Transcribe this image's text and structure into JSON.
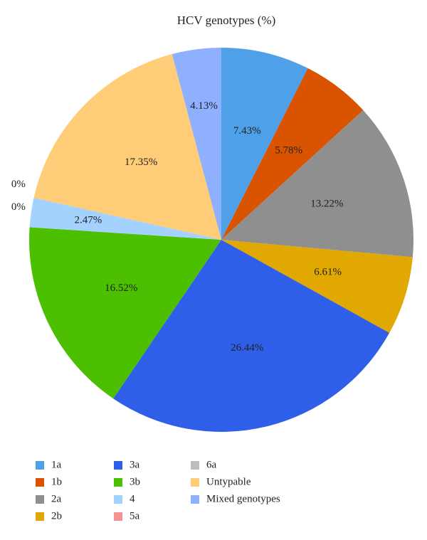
{
  "chart_data": {
    "type": "pie",
    "title": "HCV genotypes (%)",
    "categories": [
      "1a",
      "1b",
      "2a",
      "2b",
      "3a",
      "3b",
      "4",
      "5a",
      "6a",
      "Untypable",
      "Mixed genotypes"
    ],
    "values": [
      7.43,
      5.78,
      13.22,
      6.61,
      26.44,
      16.52,
      2.47,
      0,
      0,
      17.35,
      4.13
    ],
    "value_labels": [
      "7.43%",
      "5.78%",
      "13.22%",
      "6.61%",
      "26.44%",
      "16.52%",
      "2.47%",
      "0%",
      "0%",
      "17.35%",
      "4.13%"
    ],
    "colors": [
      "#4ea1e9",
      "#d95300",
      "#8f8f8f",
      "#e0a800",
      "#2f5fe8",
      "#4cbf00",
      "#a3d2ff",
      "#f09494",
      "#bdbdbd",
      "#ffcc77",
      "#8fb0ff"
    ]
  }
}
